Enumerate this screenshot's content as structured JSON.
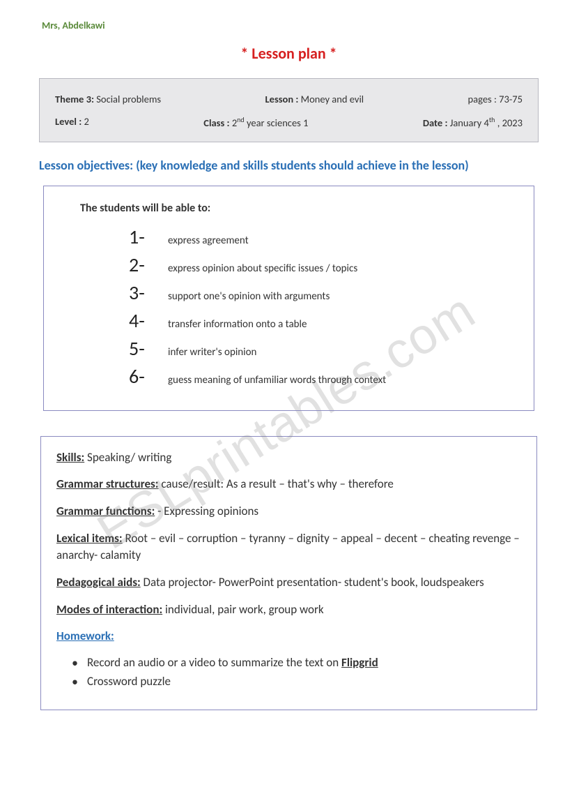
{
  "teacher_name": "Mrs, Abdelkawi",
  "title": "*  Lesson plan *",
  "meta": {
    "theme_label": "Theme 3:",
    "theme_value": "Social problems",
    "lesson_label": "Lesson :",
    "lesson_value": "Money and evil",
    "pages_label": "pages :",
    "pages_value": "73-75",
    "level_label": "Level :",
    "level_value": "2",
    "class_label": "Class :",
    "class_value_pre": "2",
    "class_value_sup": "nd",
    "class_value_post": " year sciences 1",
    "date_label": "Date :",
    "date_pre": "January 4",
    "date_sup": "th",
    "date_post": "   , 2023"
  },
  "objectives_heading": "Lesson objectives: (key knowledge and skills students should achieve in the lesson)",
  "objectives_intro": "The students will be able to:",
  "objectives": [
    {
      "num": "1-",
      "text": "express agreement"
    },
    {
      "num": "2-",
      "text": "express opinion about specific issues / topics"
    },
    {
      "num": "3-",
      "text": "support one's opinion with arguments"
    },
    {
      "num": "4-",
      "text": "transfer information onto a table"
    },
    {
      "num": "5-",
      "text": "infer writer's opinion"
    },
    {
      "num": "6-",
      "text": "guess meaning of unfamiliar words through context"
    }
  ],
  "info": {
    "skills_label": "Skills:",
    "skills_value": "   Speaking/ writing",
    "grammar_struct_label": "Grammar structures:",
    "grammar_struct_value": "   cause/result:  As a result – that's why – therefore",
    "grammar_func_label": "Grammar functions:",
    "grammar_func_value": "   -     Expressing opinions",
    "lexical_label": "Lexical items:",
    "lexical_value": "   Root – evil – corruption – tyranny – dignity – appeal – decent – cheating revenge – anarchy- calamity",
    "pedago_label": "Pedagogical aids:",
    "pedago_value": " Data projector- PowerPoint presentation- student's book, loudspeakers",
    "modes_label": "Modes of interaction:",
    "modes_value": " individual, pair work, group work",
    "homework_label": "Homework:",
    "hw_item1_pre": "Record an audio or a video to summarize the text on  ",
    "hw_item1_bold": "Flipgrid",
    "hw_item2": "Crossword puzzle"
  },
  "watermark": "ESLprintables.com",
  "colors": {
    "teacher": "#5a8a3a",
    "title": "#d62020",
    "heading_blue": "#2a6fb5",
    "box_border": "#8a8ac0",
    "meta_bg": "#e8e8ea",
    "text": "#333333",
    "watermark": "rgba(120,120,120,0.22)"
  }
}
